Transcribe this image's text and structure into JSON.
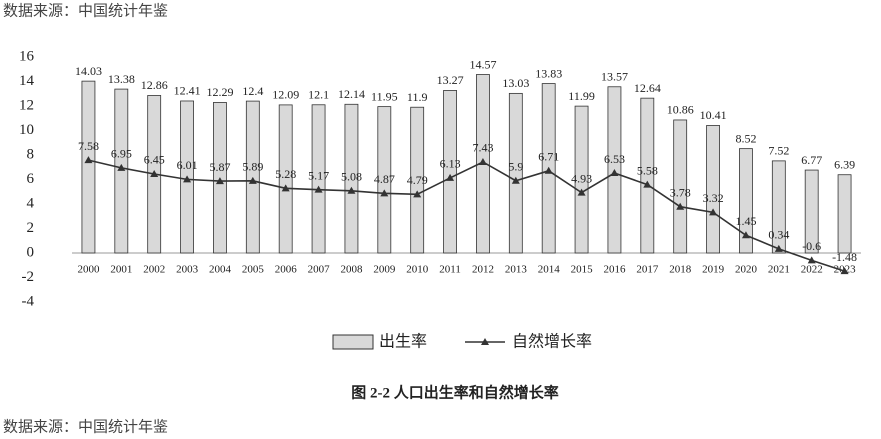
{
  "chart_data": {
    "type": "combo",
    "title": "图 2-2  人口出生率和自然增长率",
    "source": "数据来源：中国统计年鉴",
    "categories": [
      "2000",
      "2001",
      "2002",
      "2003",
      "2004",
      "2005",
      "2006",
      "2007",
      "2008",
      "2009",
      "2010",
      "2011",
      "2012",
      "2013",
      "2014",
      "2015",
      "2016",
      "2017",
      "2018",
      "2019",
      "2020",
      "2021",
      "2022",
      "2023"
    ],
    "series": [
      {
        "name": "出生率",
        "color": "#d9d9d9",
        "values": [
          14.03,
          13.38,
          12.86,
          12.41,
          12.29,
          12.4,
          12.09,
          12.1,
          12.14,
          11.95,
          11.9,
          13.27,
          14.57,
          13.03,
          13.83,
          11.99,
          13.57,
          12.64,
          10.86,
          10.41,
          8.52,
          7.52,
          6.77,
          6.39
        ]
      },
      {
        "name": "自然增长率",
        "color": "#333333",
        "values": [
          7.58,
          6.95,
          6.45,
          6.01,
          5.87,
          5.89,
          5.28,
          5.17,
          5.08,
          4.87,
          4.79,
          6.13,
          7.43,
          5.9,
          6.71,
          4.93,
          6.53,
          5.58,
          3.78,
          3.32,
          1.45,
          0.34,
          -0.6,
          -1.48
        ]
      }
    ],
    "ylim": [
      -4,
      16
    ],
    "yticks": [
      -4,
      -2,
      0,
      2,
      4,
      6,
      8,
      10,
      12,
      14,
      16
    ],
    "grid": false
  }
}
